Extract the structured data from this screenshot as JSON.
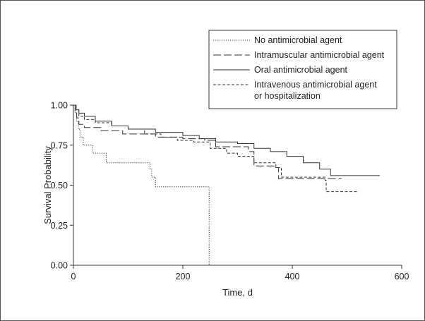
{
  "chart_data": {
    "type": "line",
    "title": "",
    "xlabel": "Time, d",
    "ylabel": "Survival Probability",
    "xlim": [
      0,
      600
    ],
    "ylim": [
      0,
      1
    ],
    "x_ticks": [
      0,
      200,
      400,
      600
    ],
    "y_ticks": [
      "0.00",
      "0.25",
      "0.50",
      "0.75",
      "1.00"
    ],
    "grid": false,
    "legend_position": "top-right",
    "line_color": "#333333",
    "series": [
      {
        "name": "No antimicrobial agent",
        "dash": "dotted",
        "steps": [
          [
            0,
            1.0
          ],
          [
            3,
            0.95
          ],
          [
            6,
            0.9
          ],
          [
            9,
            0.85
          ],
          [
            12,
            0.8
          ],
          [
            18,
            0.75
          ],
          [
            35,
            0.7
          ],
          [
            60,
            0.64
          ],
          [
            140,
            0.6
          ],
          [
            143,
            0.55
          ],
          [
            150,
            0.49
          ],
          [
            248,
            0.49
          ],
          [
            248,
            0.0
          ]
        ]
      },
      {
        "name": "Intramuscular antimicrobial agent",
        "dash": "longdash",
        "steps": [
          [
            0,
            1.0
          ],
          [
            3,
            0.96
          ],
          [
            6,
            0.92
          ],
          [
            10,
            0.88
          ],
          [
            20,
            0.86
          ],
          [
            50,
            0.84
          ],
          [
            90,
            0.82
          ],
          [
            150,
            0.8
          ],
          [
            200,
            0.79
          ],
          [
            240,
            0.78
          ],
          [
            260,
            0.74
          ],
          [
            320,
            0.71
          ],
          [
            330,
            0.62
          ],
          [
            370,
            0.61
          ],
          [
            375,
            0.54
          ],
          [
            490,
            0.54
          ]
        ]
      },
      {
        "name": "Oral antimicrobial agent",
        "dash": "solid",
        "steps": [
          [
            0,
            1.0
          ],
          [
            5,
            0.97
          ],
          [
            10,
            0.95
          ],
          [
            20,
            0.93
          ],
          [
            40,
            0.9
          ],
          [
            70,
            0.87
          ],
          [
            100,
            0.85
          ],
          [
            150,
            0.83
          ],
          [
            200,
            0.81
          ],
          [
            230,
            0.79
          ],
          [
            260,
            0.77
          ],
          [
            300,
            0.76
          ],
          [
            330,
            0.73
          ],
          [
            360,
            0.71
          ],
          [
            390,
            0.68
          ],
          [
            420,
            0.64
          ],
          [
            450,
            0.6
          ],
          [
            470,
            0.56
          ],
          [
            560,
            0.56
          ]
        ]
      },
      {
        "name": "Intravenous antimicrobial agent or hospitalization",
        "legend_lines": [
          "Intravenous antimicrobial agent",
          "or hospitalization"
        ],
        "dash": "shortdash",
        "steps": [
          [
            0,
            1.0
          ],
          [
            5,
            0.97
          ],
          [
            10,
            0.93
          ],
          [
            20,
            0.91
          ],
          [
            40,
            0.89
          ],
          [
            70,
            0.87
          ],
          [
            100,
            0.85
          ],
          [
            130,
            0.82
          ],
          [
            160,
            0.8
          ],
          [
            190,
            0.78
          ],
          [
            220,
            0.77
          ],
          [
            250,
            0.73
          ],
          [
            280,
            0.7
          ],
          [
            300,
            0.68
          ],
          [
            330,
            0.64
          ],
          [
            370,
            0.61
          ],
          [
            380,
            0.55
          ],
          [
            460,
            0.53
          ],
          [
            462,
            0.46
          ],
          [
            520,
            0.46
          ]
        ]
      }
    ]
  }
}
